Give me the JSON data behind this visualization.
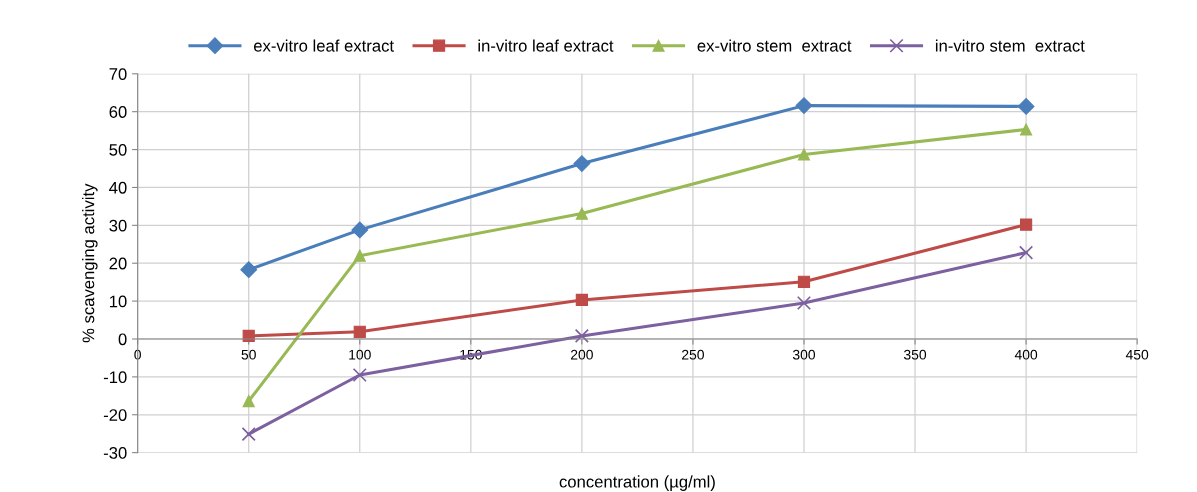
{
  "chart_data": {
    "type": "line",
    "xlabel": "concentration (µg/ml)",
    "ylabel": "% scavenging activity",
    "x": [
      50,
      100,
      200,
      300,
      400
    ],
    "series": [
      {
        "name": "ex-vitro leaf extract",
        "color": "#4a7ebb",
        "marker": "diamond",
        "values": [
          18.3,
          28.8,
          46.3,
          61.6,
          61.4
        ]
      },
      {
        "name": "in-vitro leaf extract",
        "color": "#be4b48",
        "marker": "square",
        "values": [
          0.8,
          1.9,
          10.3,
          15.1,
          30.2
        ]
      },
      {
        "name": "ex-vitro stem  extract",
        "color": "#98b954",
        "marker": "triangle",
        "values": [
          -16.4,
          22,
          33.1,
          48.7,
          55.3
        ]
      },
      {
        "name": "in-vitro stem  extract",
        "color": "#7d60a0",
        "marker": "cross",
        "values": [
          -25.1,
          -9.5,
          0.8,
          9.5,
          22.8
        ]
      }
    ],
    "xlim": [
      0,
      450
    ],
    "xticks": [
      0,
      50,
      100,
      150,
      200,
      250,
      300,
      350,
      400,
      450
    ],
    "ylim": [
      -30,
      70
    ],
    "yticks": [
      -30,
      -20,
      -10,
      0,
      10,
      20,
      30,
      40,
      50,
      60,
      70
    ],
    "grid": true,
    "legend": "top",
    "line_style": "solid"
  }
}
